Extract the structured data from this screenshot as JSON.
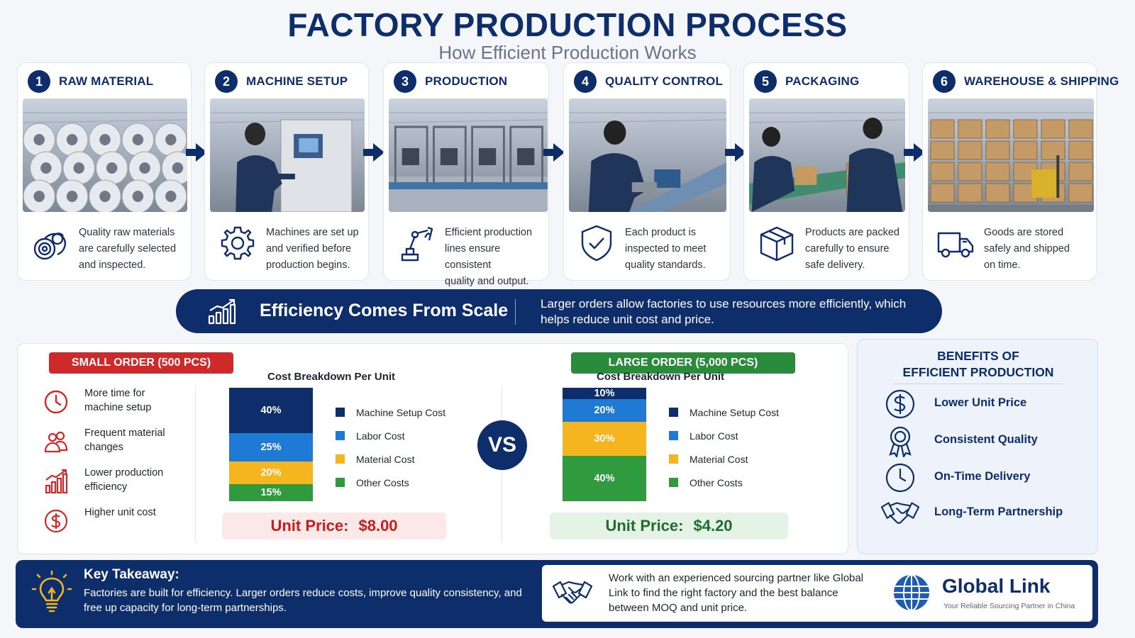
{
  "header": {
    "title": "FACTORY PRODUCTION PROCESS",
    "subtitle": "How Efficient Production Works"
  },
  "steps": [
    {
      "num": "1",
      "title": "RAW MATERIAL",
      "desc": "Quality raw materials\nare carefully selected\nand inspected.",
      "icon": "material-coils-icon",
      "photo": "steel-coils-photo"
    },
    {
      "num": "2",
      "title": "MACHINE SETUP",
      "desc": "Machines are set up\nand verified before\nproduction begins.",
      "icon": "gear-icon",
      "photo": "machine-operator-photo"
    },
    {
      "num": "3",
      "title": "PRODUCTION",
      "desc": "Efficient production\nlines ensure consistent\nquality and output.",
      "icon": "robot-arm-icon",
      "photo": "production-line-photo"
    },
    {
      "num": "4",
      "title": "QUALITY CONTROL",
      "desc": "Each product is\ninspected to meet\nquality standards.",
      "icon": "shield-check-icon",
      "photo": "inspection-photo"
    },
    {
      "num": "5",
      "title": "PACKAGING",
      "desc": "Products are packed\ncarefully to ensure\nsafe delivery.",
      "icon": "box-icon",
      "photo": "packing-photo"
    },
    {
      "num": "6",
      "title": "WAREHOUSE & SHIPPING",
      "desc": "Goods are stored\nsafely and shipped\non time.",
      "icon": "truck-icon",
      "photo": "warehouse-photo"
    }
  ],
  "banner": {
    "title": "Efficiency Comes From Scale",
    "text": "Larger orders allow factories to use resources more efficiently, which helps reduce unit cost and price.",
    "icon": "growth-chart-icon"
  },
  "small_order": {
    "badge": "SMALL ORDER (500 PCS)",
    "cons": [
      {
        "text": "More time for\nmachine setup",
        "icon": "clock-icon"
      },
      {
        "text": "Frequent material\nchanges",
        "icon": "people-icon"
      },
      {
        "text": "Lower production\nefficiency",
        "icon": "bar-chart-icon"
      },
      {
        "text": "Higher unit cost",
        "icon": "dollar-icon"
      }
    ],
    "chart_title": "Cost Breakdown Per Unit",
    "price_label": "Unit Price:",
    "price_value": "$8.00"
  },
  "large_order": {
    "badge": "LARGE ORDER (5,000 PCS)",
    "chart_title": "Cost Breakdown Per Unit",
    "price_label": "Unit Price:",
    "price_value": "$4.20"
  },
  "vs_label": "VS",
  "colors": {
    "navy": "#0d2d6b",
    "machine_setup": "#0d2d6b",
    "labor": "#1f7ad6",
    "material": "#f5b51f",
    "other": "#2f9a3e",
    "small_badge": "#cf2a2a",
    "large_badge": "#2a8b3b"
  },
  "chart_data": [
    {
      "type": "bar",
      "stacked": true,
      "title": "Cost Breakdown Per Unit",
      "categories": [
        "SMALL ORDER (500 PCS)"
      ],
      "series": [
        {
          "name": "Machine Setup Cost",
          "values": [
            40
          ],
          "label": "40%"
        },
        {
          "name": "Labor Cost",
          "values": [
            25
          ],
          "label": "25%"
        },
        {
          "name": "Material Cost",
          "values": [
            20
          ],
          "label": "20%"
        },
        {
          "name": "Other Costs",
          "values": [
            15
          ],
          "label": "15%"
        }
      ]
    },
    {
      "type": "bar",
      "stacked": true,
      "title": "Cost Breakdown Per Unit",
      "categories": [
        "LARGE ORDER (5,000 PCS)"
      ],
      "series": [
        {
          "name": "Machine Setup Cost",
          "values": [
            10
          ],
          "label": "10%"
        },
        {
          "name": "Labor Cost",
          "values": [
            20
          ],
          "label": "20%"
        },
        {
          "name": "Material Cost",
          "values": [
            30
          ],
          "label": "30%"
        },
        {
          "name": "Other Costs",
          "values": [
            40
          ],
          "label": "40%"
        }
      ]
    }
  ],
  "legend": [
    "Machine Setup Cost",
    "Labor Cost",
    "Material Cost",
    "Other Costs"
  ],
  "benefits": {
    "title": "BENEFITS OF\nEFFICIENT PRODUCTION",
    "items": [
      {
        "label": "Lower Unit Price",
        "icon": "dollar-circle-icon"
      },
      {
        "label": "Consistent Quality",
        "icon": "award-ribbon-icon"
      },
      {
        "label": "On-Time Delivery",
        "icon": "clock-icon"
      },
      {
        "label": "Long-Term Partnership",
        "icon": "handshake-icon"
      }
    ]
  },
  "takeaway": {
    "title": "Key Takeaway:",
    "text": "Factories are built for efficiency.  Larger orders reduce costs, improve quality consistency, and free up capacity for long-term partnerships.",
    "partner_text": "Work with an experienced sourcing partner like Global Link to find the right factory and the best balance between MOQ and unit price.",
    "brand": "Global Link",
    "brand_tagline": "Your Reliable Sourcing Partner in China"
  }
}
